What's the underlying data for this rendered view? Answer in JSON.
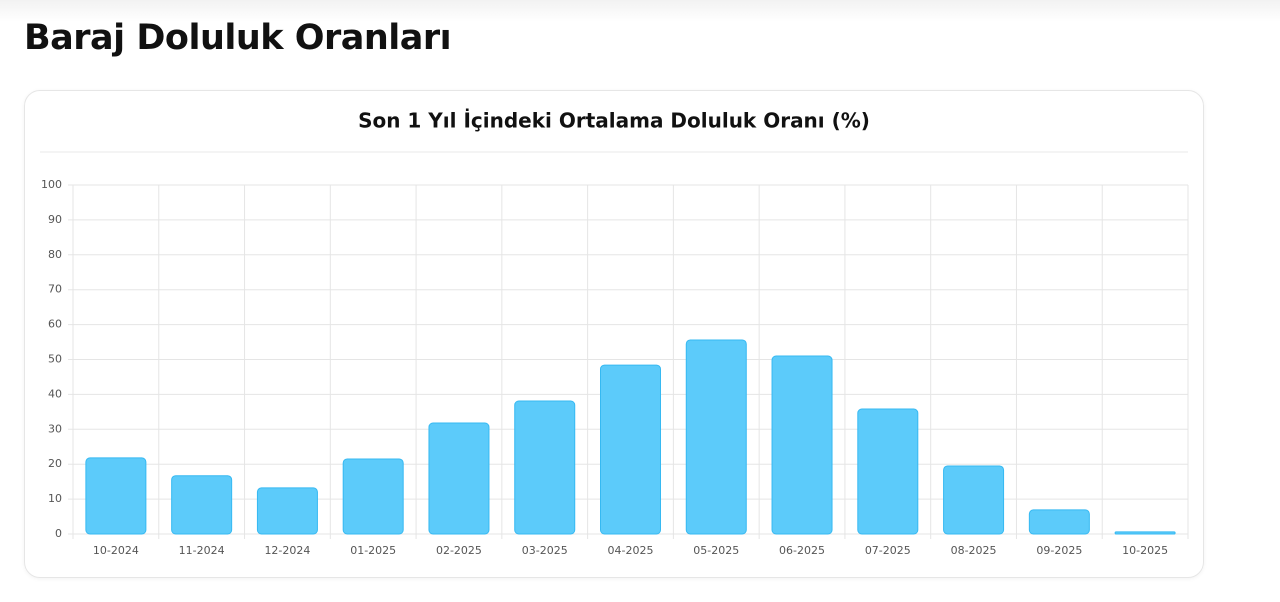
{
  "header": {
    "title": "Baraj Doluluk Oranları"
  },
  "chart_data": {
    "type": "bar",
    "title": "Son 1 Yıl İçindeki Ortalama Doluluk Oranı (%)",
    "categories": [
      "10-2024",
      "11-2024",
      "12-2024",
      "01-2025",
      "02-2025",
      "03-2025",
      "04-2025",
      "05-2025",
      "06-2025",
      "07-2025",
      "08-2025",
      "09-2025",
      "10-2025"
    ],
    "values": [
      21.8,
      16.7,
      13.2,
      21.5,
      31.8,
      38.1,
      48.4,
      55.6,
      51.0,
      35.8,
      19.5,
      6.9,
      0.6
    ],
    "color": "#5ccbfa",
    "border_color": "#36b9f2",
    "ylim": [
      0,
      100
    ],
    "yticks": [
      0,
      10,
      20,
      30,
      40,
      50,
      60,
      70,
      80,
      90,
      100
    ],
    "grid": true
  }
}
